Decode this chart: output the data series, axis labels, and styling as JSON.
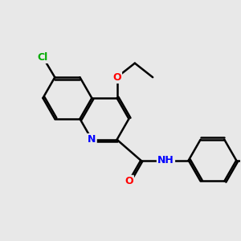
{
  "bg_color": "#e8e8e8",
  "bond_color": "#000000",
  "bond_width": 1.8,
  "atom_colors": {
    "N": "#0000ff",
    "O": "#ff0000",
    "Cl": "#00aa00",
    "H": "#000000",
    "C": "#000000"
  },
  "font_size": 9
}
